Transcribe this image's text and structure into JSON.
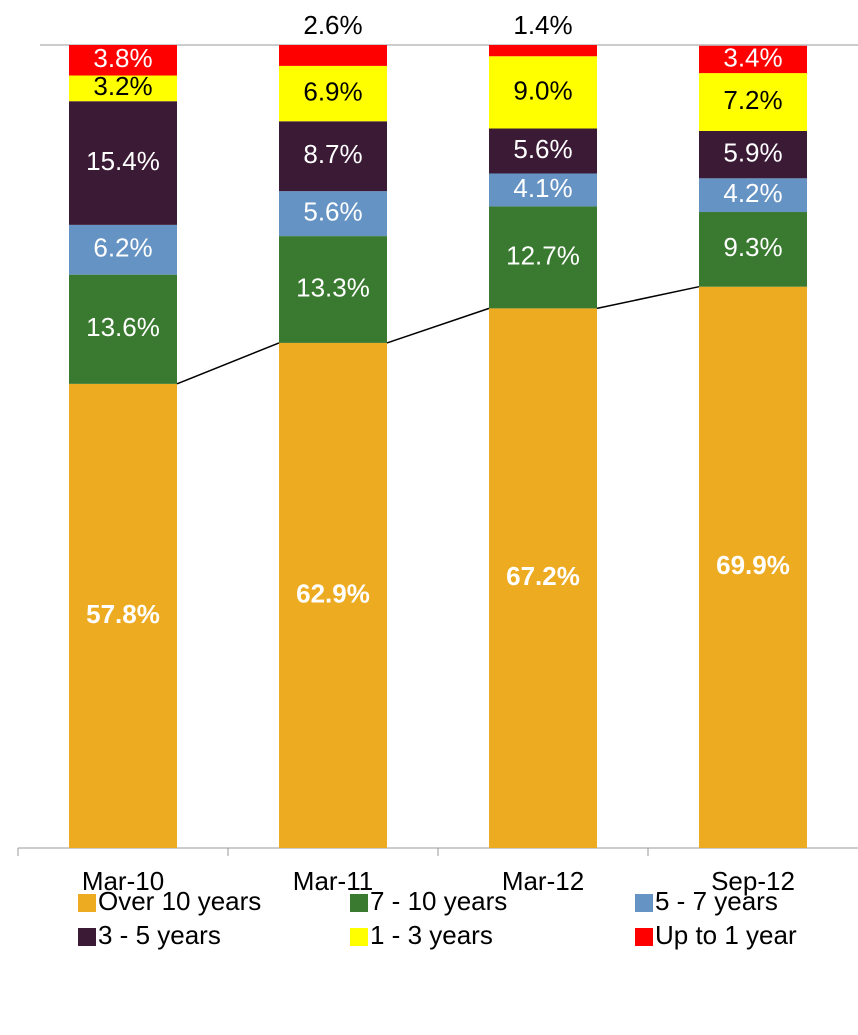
{
  "chart_data": {
    "type": "stacked_bar",
    "categories": [
      "Mar-10",
      "Mar-11",
      "Mar-12",
      "Sep-12"
    ],
    "ylim": [
      0,
      100
    ],
    "series": [
      {
        "name": "Over 10 years",
        "color": "#edab21",
        "values": [
          57.8,
          62.9,
          67.2,
          69.9
        ],
        "value_labels": [
          "57.8%",
          "62.9%",
          "67.2%",
          "69.9%"
        ]
      },
      {
        "name": "7 - 10 years",
        "color": "#3a7a30",
        "values": [
          13.6,
          13.3,
          12.7,
          9.3
        ],
        "value_labels": [
          "13.6%",
          "13.3%",
          "12.7%",
          "9.3%"
        ]
      },
      {
        "name": "5 - 7 years",
        "color": "#6593c4",
        "values": [
          6.2,
          5.6,
          4.1,
          4.2
        ],
        "value_labels": [
          "6.2%",
          "5.6%",
          "4.1%",
          "4.2%"
        ]
      },
      {
        "name": "3 - 5 years",
        "color": "#3b1a36",
        "values": [
          15.4,
          8.7,
          5.6,
          5.9
        ],
        "value_labels": [
          "15.4%",
          "8.7%",
          "5.6%",
          "5.9%"
        ]
      },
      {
        "name": "1 - 3 years",
        "color": "#ffff00",
        "values": [
          3.2,
          6.9,
          9.0,
          7.2
        ],
        "value_labels": [
          "3.2%",
          "6.9%",
          "9.0%",
          "7.2%"
        ]
      },
      {
        "name": "Up to 1 year",
        "color": "#ff0000",
        "values": [
          3.8,
          2.6,
          1.4,
          3.4
        ],
        "value_labels": [
          "3.8%",
          "2.6%",
          "1.4%",
          "3.4%"
        ]
      }
    ]
  }
}
